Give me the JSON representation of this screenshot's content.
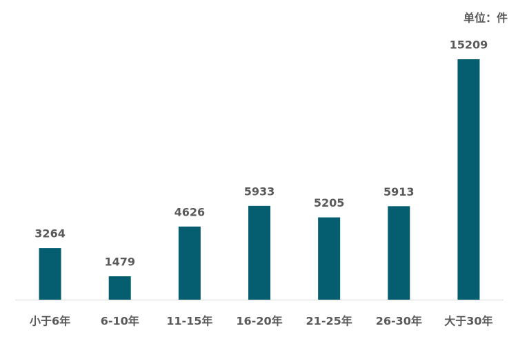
{
  "chart_data": {
    "type": "bar",
    "unit_label": "单位：件",
    "categories": [
      "小于6年",
      "6-10年",
      "11-15年",
      "16-20年",
      "21-25年",
      "26-30年",
      "大于30年"
    ],
    "values": [
      3264,
      1479,
      4626,
      5933,
      5205,
      5913,
      15209
    ],
    "color": "#045e70"
  }
}
